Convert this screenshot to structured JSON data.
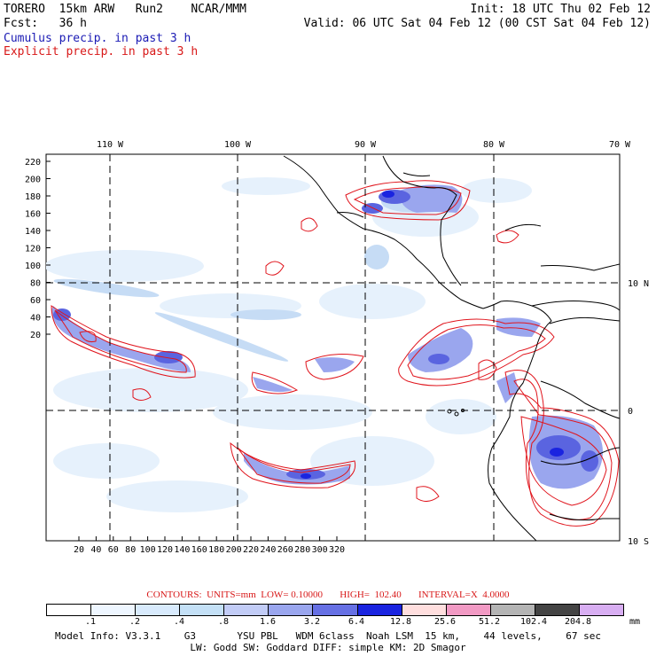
{
  "header": {
    "model": "TORERO  15km ARW   Run2    NCAR/MMM",
    "init": "Init: 18 UTC Thu 02 Feb 12",
    "fcst": "Fcst:   36 h",
    "valid": "Valid: 06 UTC Sat 04 Feb 12 (00 CST Sat 04 Feb 12)",
    "field1": "Cumulus precip. in past 3 h",
    "field2": "Explicit precip. in past 3 h"
  },
  "map": {
    "lon_labels": [
      "110 W",
      "100 W",
      "90 W",
      "80 W",
      "70 W"
    ],
    "lat_labels": [
      "10 N",
      "0",
      "10 S"
    ],
    "y_ticks": [
      "220",
      "200",
      "180",
      "160",
      "140",
      "120",
      "100",
      "80",
      "60",
      "40",
      "20"
    ],
    "x_ticks": [
      "20",
      "40",
      "60",
      "80",
      "100",
      "120",
      "140",
      "160",
      "180",
      "200",
      "220",
      "240",
      "260",
      "280",
      "300",
      "320"
    ]
  },
  "contours": {
    "text": "CONTOURS:  UNITS=mm  LOW= 0.10000       HIGH=  102.40       INTERVAL=X  4.0000"
  },
  "legend": {
    "values": [
      ".1",
      ".2",
      ".4",
      ".8",
      "1.6",
      "3.2",
      "6.4",
      "12.8",
      "25.6",
      "51.2",
      "102.4",
      "204.8"
    ],
    "unit": "mm",
    "colors": [
      "#ffffff",
      "#eef6ff",
      "#d8eafc",
      "#c4e0f6",
      "#c2ccf6",
      "#9aa6ee",
      "#6670e4",
      "#1a24e0",
      "#ffdede",
      "#f29ac4",
      "#b4b4b4",
      "#444444",
      "#d8aef2"
    ]
  },
  "model_info": {
    "line1": "Model Info: V3.3.1    G3       YSU PBL   WDM 6class  Noah LSM  15 km,    44 levels,    67 sec",
    "line2": "LW: Godd SW: Goddard DIFF: simple KM: 2D Smagor"
  }
}
